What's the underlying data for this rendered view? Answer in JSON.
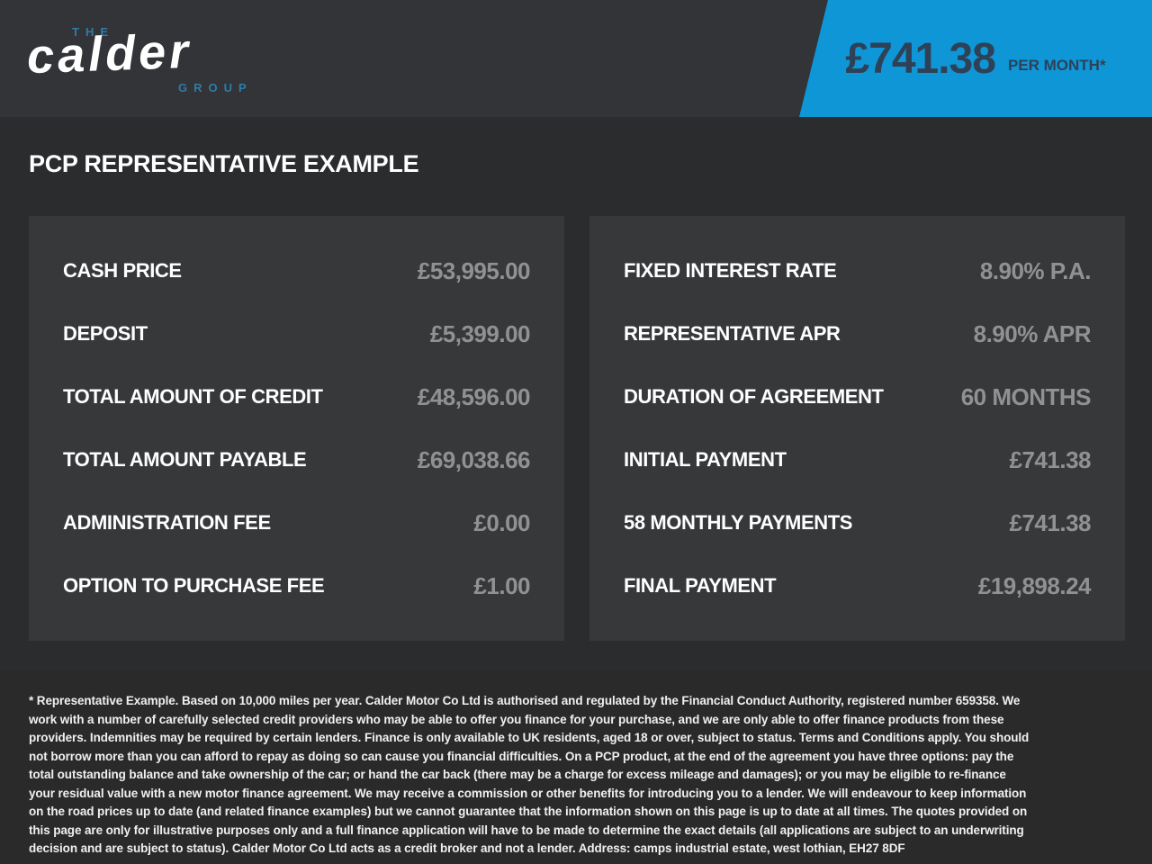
{
  "header": {
    "logo": {
      "the": "THE",
      "name": "calder",
      "group": "GROUP"
    },
    "banner": {
      "amount": "£741.38",
      "period": "PER MONTH*"
    }
  },
  "title": "PCP REPRESENTATIVE EXAMPLE",
  "finance": {
    "left": [
      {
        "label": "CASH PRICE",
        "value": "£53,995.00"
      },
      {
        "label": "DEPOSIT",
        "value": "£5,399.00"
      },
      {
        "label": "TOTAL AMOUNT OF CREDIT",
        "value": "£48,596.00"
      },
      {
        "label": "TOTAL AMOUNT PAYABLE",
        "value": "£69,038.66"
      },
      {
        "label": "ADMINISTRATION FEE",
        "value": "£0.00"
      },
      {
        "label": "OPTION TO PURCHASE FEE",
        "value": "£1.00"
      }
    ],
    "right": [
      {
        "label": "FIXED INTEREST RATE",
        "value": "8.90% P.A."
      },
      {
        "label": "REPRESENTATIVE APR",
        "value": "8.90% APR"
      },
      {
        "label": "DURATION OF AGREEMENT",
        "value": "60 MONTHS"
      },
      {
        "label": "INITIAL PAYMENT",
        "value": "£741.38"
      },
      {
        "label": "58 MONTHLY PAYMENTS",
        "value": "£741.38"
      },
      {
        "label": "FINAL PAYMENT",
        "value": "£19,898.24"
      }
    ]
  },
  "footer": {
    "legal": "* Representative Example. Based on 10,000 miles per year. Calder Motor Co Ltd is authorised and regulated by the Financial Conduct Authority, registered number 659358. We work with a number of carefully selected credit providers who may be able to offer you finance for your purchase, and we are only able to offer finance products from these providers. Indemnities may be required by certain lenders. Finance is only available to UK residents, aged 18 or over, subject to status. Terms and Conditions apply. You should not borrow more than you can afford to repay as doing so can cause you financial difficulties. On a PCP product, at the end of the agreement you have three options: pay the total outstanding balance and take ownership of the car; or hand the car back (there may be a charge for excess mileage and damages); or you may be eligible to re-finance your residual value with a new motor finance agreement. We may receive a commission or other benefits for introducing you to a lender. We will endeavour to keep information on the road prices up to date (and related finance examples) but we cannot guarantee that the information shown on this page is up to date at all times. The quotes provided on this page are only for illustrative purposes only and a full finance application will have to be made to determine the exact details (all applications are subject to an underwriting decision and are subject to status). Calder Motor Co Ltd acts as a credit broker and not a lender. Address: camps industrial estate, west lothian, EH27 8DF"
  },
  "colors": {
    "accent_blue": "#0e96d6",
    "banner_text": "#2e4156",
    "logo_blue": "#2e7ca8",
    "value_gray": "#919191",
    "header_bg": "#333437",
    "main_bg": "#2b2c2d",
    "panel_bg": "#37383a",
    "footer_bg": "#2a2a2b"
  }
}
